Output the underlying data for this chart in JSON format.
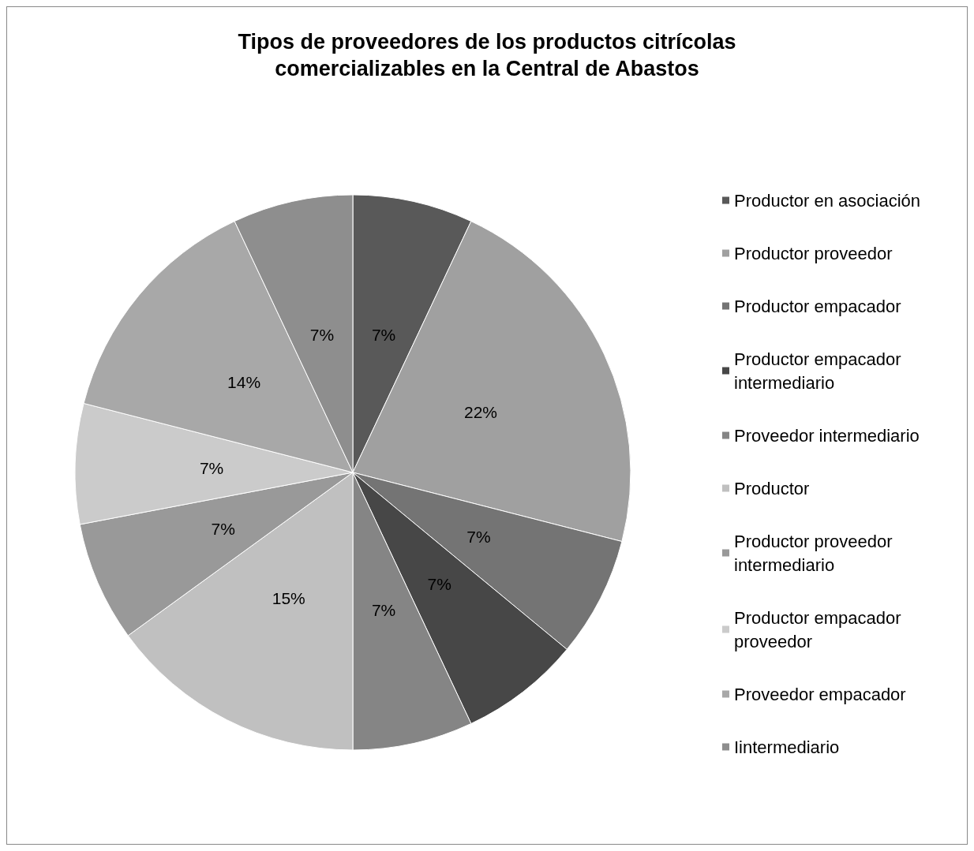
{
  "chart_data": {
    "type": "pie",
    "title": "Tipos de proveedores de los productos citrícolas\ncomercializables en la Central de Abastos",
    "categories": [
      "Productor en asociación",
      "Productor proveedor",
      "Productor empacador",
      "Productor empacador intermediario",
      "Proveedor intermediario",
      "Productor",
      "Productor proveedor intermediario",
      "Productor empacador proveedor",
      "Proveedor empacador",
      "Iintermediario"
    ],
    "values": [
      7,
      22,
      7,
      7,
      7,
      15,
      7,
      7,
      14,
      7
    ],
    "value_labels": [
      "7%",
      "22%",
      "7%",
      "7%",
      "7%",
      "15%",
      "7%",
      "7%",
      "14%",
      "7%"
    ],
    "colors": [
      "#595959",
      "#a0a0a0",
      "#747474",
      "#474747",
      "#858585",
      "#c0c0c0",
      "#999999",
      "#cbcbcb",
      "#a8a8a8",
      "#8e8e8e"
    ],
    "legend": "right"
  }
}
